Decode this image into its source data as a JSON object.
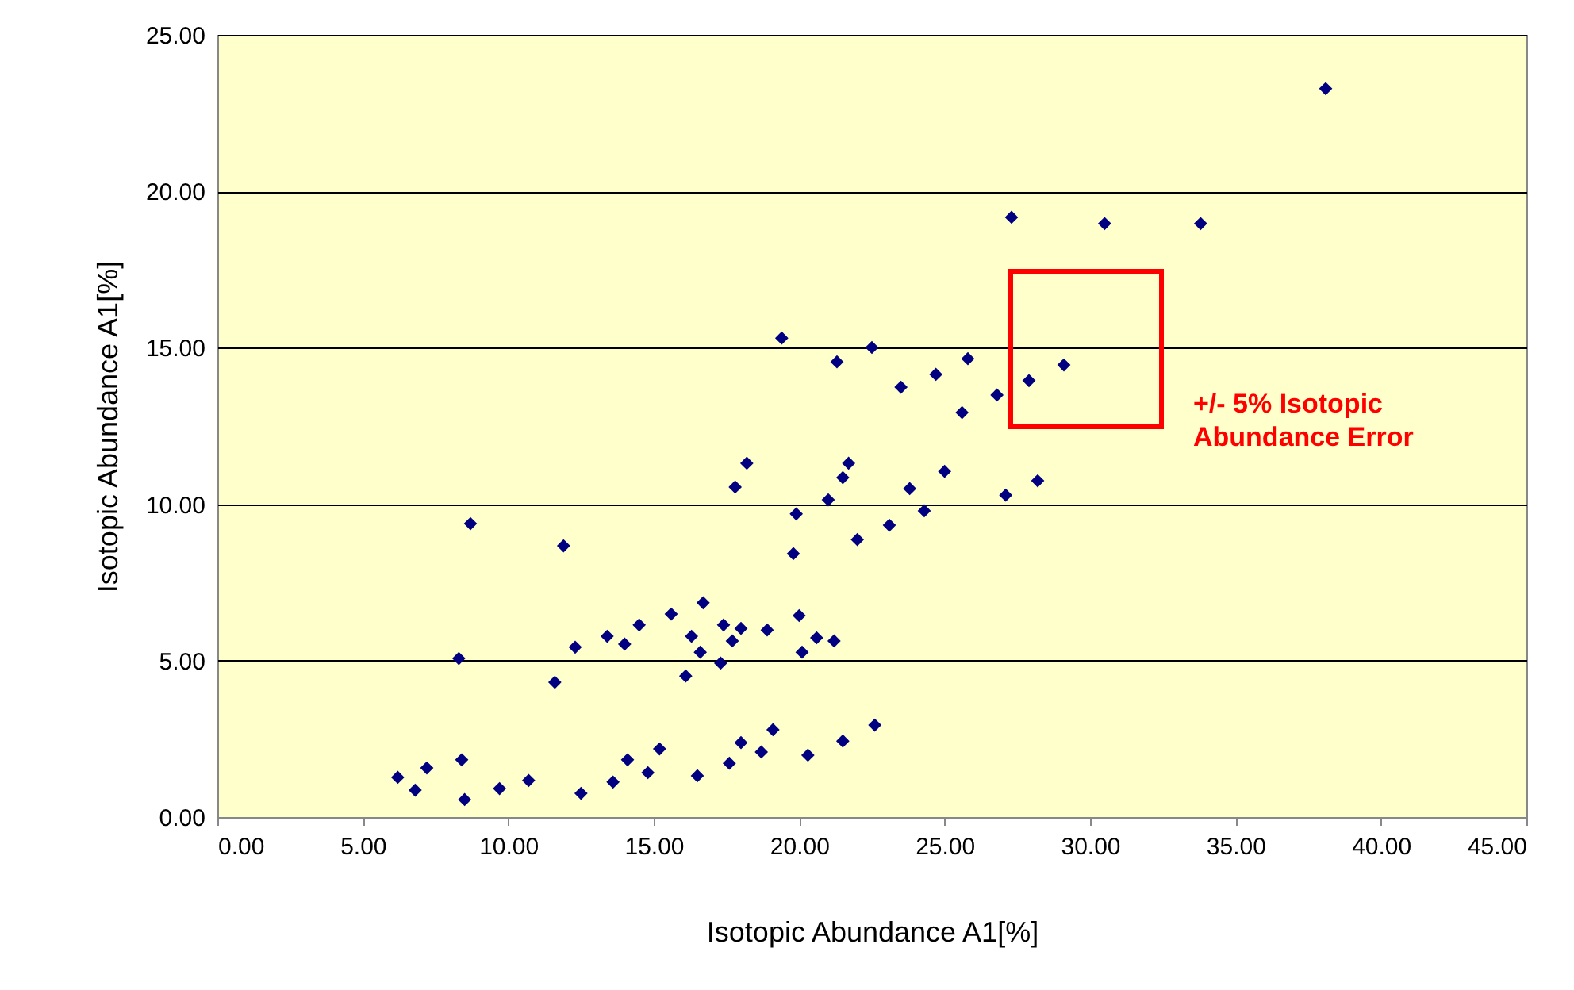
{
  "chart_data": {
    "type": "scatter",
    "xlabel": "Isotopic Abundance A1[%]",
    "ylabel": "Isotopic Abundance A1[%]",
    "x": [
      6.2,
      6.8,
      7.2,
      8.3,
      8.4,
      8.5,
      8.7,
      9.7,
      10.7,
      11.9,
      11.6,
      12.3,
      12.5,
      13.4,
      13.6,
      14.1,
      14.0,
      14.5,
      14.8,
      15.2,
      15.6,
      16.1,
      16.3,
      16.5,
      16.6,
      16.7,
      17.3,
      17.4,
      17.6,
      17.7,
      17.8,
      18.0,
      18.0,
      18.2,
      18.7,
      18.9,
      19.1,
      19.4,
      19.8,
      19.9,
      20.0,
      20.1,
      20.3,
      20.6,
      21.0,
      21.2,
      21.3,
      21.5,
      21.5,
      21.7,
      22.0,
      22.5,
      22.6,
      23.1,
      23.5,
      23.8,
      24.3,
      24.7,
      25.0,
      25.6,
      25.8,
      26.8,
      27.1,
      27.3,
      27.9,
      28.2,
      29.1,
      30.5,
      33.8,
      38.1
    ],
    "series": [
      {
        "color": "#000080",
        "values": [
          1.27,
          0.86,
          1.57,
          5.07,
          1.83,
          0.56,
          9.38,
          0.91,
          1.17,
          8.67,
          4.31,
          5.43,
          0.76,
          5.78,
          1.12,
          1.83,
          5.53,
          6.14,
          1.42,
          2.18,
          6.49,
          4.51,
          5.78,
          1.32,
          5.27,
          6.85,
          4.92,
          6.14,
          1.72,
          5.63,
          10.55,
          6.03,
          2.38,
          11.31,
          2.08,
          5.98,
          2.79,
          15.31,
          8.42,
          9.69,
          6.44,
          5.27,
          1.98,
          5.73,
          10.14,
          5.63,
          14.55,
          2.43,
          10.85,
          11.31,
          8.87,
          15.01,
          2.94,
          9.33,
          13.74,
          10.5,
          9.79,
          14.15,
          11.05,
          12.93,
          14.65,
          13.49,
          10.29,
          19.17,
          13.95,
          10.75,
          14.45,
          18.97,
          18.97,
          23.28
        ]
      }
    ],
    "xlim": [
      0,
      45
    ],
    "ylim": [
      0,
      25
    ],
    "xticks": [
      {
        "value": 0,
        "label": "0.00"
      },
      {
        "value": 5,
        "label": "5.00"
      },
      {
        "value": 10,
        "label": "10.00"
      },
      {
        "value": 15,
        "label": "15.00"
      },
      {
        "value": 20,
        "label": "20.00"
      },
      {
        "value": 25,
        "label": "25.00"
      },
      {
        "value": 30,
        "label": "30.00"
      },
      {
        "value": 35,
        "label": "35.00"
      },
      {
        "value": 40,
        "label": "40.00"
      },
      {
        "value": 45,
        "label": "45.00"
      }
    ],
    "yticks": [
      {
        "value": 0,
        "label": "0.00"
      },
      {
        "value": 5,
        "label": "5.00"
      },
      {
        "value": 10,
        "label": "10.00"
      },
      {
        "value": 15,
        "label": "15.00"
      },
      {
        "value": 20,
        "label": "20.00"
      },
      {
        "value": 25,
        "label": "25.00"
      }
    ],
    "grid": "y",
    "marker": "diamond",
    "annotations": [
      "+/- 5% Isotopic Abundance Error"
    ]
  }
}
